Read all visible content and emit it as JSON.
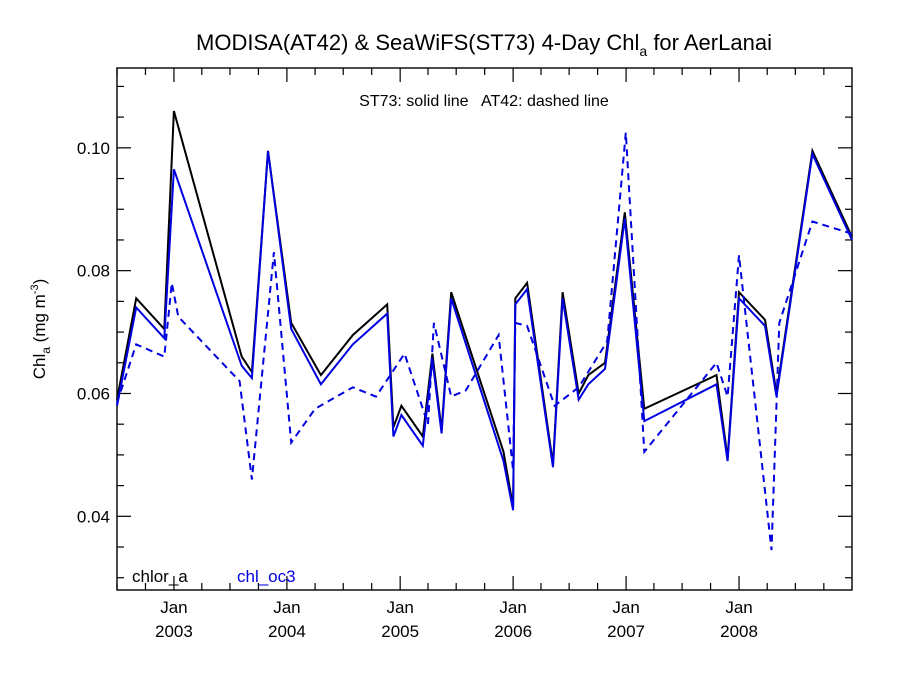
{
  "chart_data": {
    "type": "line",
    "title": {
      "text": "MODISA(AT42) & SeaWiFS(ST73) 4-Day Chl",
      "sub": "a",
      "tail": " for AerLanai"
    },
    "annotation": "ST73: solid line   AT42: dashed line",
    "ylabel": {
      "pre": "Chl",
      "sub": "a",
      "mid": " (mg m",
      "sup": "-3",
      "post": ")"
    },
    "ylim": [
      0.028,
      0.113
    ],
    "yticks": [
      0.04,
      0.06,
      0.08,
      0.1
    ],
    "ytick_labels": [
      "0.04",
      "0.06",
      "0.08",
      "0.10"
    ],
    "yminor_step": 0.005,
    "xlim": [
      "2002-07-01",
      "2008-12-31"
    ],
    "xticks": [
      {
        "date": "2003-01-01",
        "month": "Jan",
        "year": "2003"
      },
      {
        "date": "2004-01-01",
        "month": "Jan",
        "year": "2004"
      },
      {
        "date": "2005-01-01",
        "month": "Jan",
        "year": "2005"
      },
      {
        "date": "2006-01-01",
        "month": "Jan",
        "year": "2006"
      },
      {
        "date": "2007-01-01",
        "month": "Jan",
        "year": "2007"
      },
      {
        "date": "2008-01-01",
        "month": "Jan",
        "year": "2008"
      }
    ],
    "legend": [
      {
        "label": "chlor_a",
        "color": "#000000"
      },
      {
        "label": "chl_oc3",
        "color": "#0000e0"
      }
    ],
    "legend_position": "bottom-left",
    "grid": false,
    "series": [
      {
        "name": "ST73 chlor_a",
        "color": "#000000",
        "dash": false,
        "points": [
          [
            "2002-07-01",
            0.059
          ],
          [
            "2002-09-01",
            0.0755
          ],
          [
            "2002-12-01",
            0.0705
          ],
          [
            "2003-01-01",
            0.106
          ],
          [
            "2003-08-08",
            0.066
          ],
          [
            "2003-09-10",
            0.0635
          ],
          [
            "2003-11-01",
            0.0995
          ],
          [
            "2004-01-15",
            0.0715
          ],
          [
            "2004-04-20",
            0.063
          ],
          [
            "2004-08-01",
            0.0695
          ],
          [
            "2004-11-20",
            0.0745
          ],
          [
            "2004-12-10",
            0.0545
          ],
          [
            "2005-01-05",
            0.058
          ],
          [
            "2005-03-15",
            0.053
          ],
          [
            "2005-04-15",
            0.0665
          ],
          [
            "2005-05-15",
            0.054
          ],
          [
            "2005-06-15",
            0.0765
          ],
          [
            "2005-12-01",
            0.0505
          ],
          [
            "2006-01-01",
            0.0415
          ],
          [
            "2006-01-08",
            0.0755
          ],
          [
            "2006-02-15",
            0.078
          ],
          [
            "2006-05-10",
            0.0485
          ],
          [
            "2006-06-10",
            0.0765
          ],
          [
            "2006-08-01",
            0.06
          ],
          [
            "2006-09-01",
            0.063
          ],
          [
            "2006-10-25",
            0.065
          ],
          [
            "2006-12-28",
            0.0895
          ],
          [
            "2007-03-01",
            0.0575
          ],
          [
            "2007-10-20",
            0.063
          ],
          [
            "2007-11-25",
            0.0495
          ],
          [
            "2008-01-01",
            0.0765
          ],
          [
            "2008-03-25",
            0.072
          ],
          [
            "2008-05-01",
            0.06
          ],
          [
            "2008-08-25",
            0.0995
          ],
          [
            "2008-12-31",
            0.0855
          ]
        ]
      },
      {
        "name": "ST73 chl_oc3",
        "color": "#0000e0",
        "dash": false,
        "points": [
          [
            "2002-07-01",
            0.058
          ],
          [
            "2002-09-01",
            0.074
          ],
          [
            "2002-12-01",
            0.069
          ],
          [
            "2003-01-01",
            0.0965
          ],
          [
            "2003-08-08",
            0.0645
          ],
          [
            "2003-09-10",
            0.0625
          ],
          [
            "2003-11-01",
            0.0995
          ],
          [
            "2004-01-15",
            0.0705
          ],
          [
            "2004-04-20",
            0.0615
          ],
          [
            "2004-08-01",
            0.068
          ],
          [
            "2004-11-20",
            0.073
          ],
          [
            "2004-12-10",
            0.053
          ],
          [
            "2005-01-05",
            0.0565
          ],
          [
            "2005-03-15",
            0.0515
          ],
          [
            "2005-04-15",
            0.0655
          ],
          [
            "2005-05-15",
            0.0535
          ],
          [
            "2005-06-15",
            0.0755
          ],
          [
            "2005-12-01",
            0.049
          ],
          [
            "2006-01-01",
            0.041
          ],
          [
            "2006-01-08",
            0.0745
          ],
          [
            "2006-02-15",
            0.077
          ],
          [
            "2006-05-10",
            0.048
          ],
          [
            "2006-06-10",
            0.0755
          ],
          [
            "2006-08-01",
            0.059
          ],
          [
            "2006-09-01",
            0.0615
          ],
          [
            "2006-10-25",
            0.064
          ],
          [
            "2006-12-28",
            0.0885
          ],
          [
            "2007-03-01",
            0.0555
          ],
          [
            "2007-10-20",
            0.0615
          ],
          [
            "2007-11-25",
            0.049
          ],
          [
            "2008-01-01",
            0.0755
          ],
          [
            "2008-03-25",
            0.071
          ],
          [
            "2008-05-01",
            0.0595
          ],
          [
            "2008-08-25",
            0.099
          ],
          [
            "2008-12-31",
            0.085
          ]
        ]
      },
      {
        "name": "AT42 chl_oc3",
        "color": "#0000e0",
        "dash": true,
        "points": [
          [
            "2002-07-01",
            0.0585
          ],
          [
            "2002-09-01",
            0.068
          ],
          [
            "2002-12-01",
            0.066
          ],
          [
            "2002-12-25",
            0.078
          ],
          [
            "2003-01-15",
            0.0725
          ],
          [
            "2003-08-01",
            0.062
          ],
          [
            "2003-09-10",
            0.046
          ],
          [
            "2003-11-20",
            0.083
          ],
          [
            "2004-01-15",
            0.052
          ],
          [
            "2004-04-01",
            0.0575
          ],
          [
            "2004-08-01",
            0.061
          ],
          [
            "2004-10-15",
            0.0595
          ],
          [
            "2005-01-15",
            0.0665
          ],
          [
            "2005-04-01",
            0.055
          ],
          [
            "2005-04-20",
            0.0715
          ],
          [
            "2005-06-15",
            0.0595
          ],
          [
            "2005-08-01",
            0.0605
          ],
          [
            "2005-11-15",
            0.0695
          ],
          [
            "2006-01-01",
            0.0475
          ],
          [
            "2006-01-08",
            0.0715
          ],
          [
            "2006-02-15",
            0.071
          ],
          [
            "2006-05-15",
            0.058
          ],
          [
            "2006-08-01",
            0.061
          ],
          [
            "2006-11-01",
            0.0685
          ],
          [
            "2006-12-31",
            0.1025
          ],
          [
            "2007-03-01",
            0.0505
          ],
          [
            "2007-10-20",
            0.065
          ],
          [
            "2007-11-25",
            0.0595
          ],
          [
            "2008-01-01",
            0.0825
          ],
          [
            "2008-04-15",
            0.0345
          ],
          [
            "2008-05-10",
            0.0715
          ],
          [
            "2008-08-25",
            0.088
          ],
          [
            "2008-12-31",
            0.086
          ]
        ]
      }
    ]
  }
}
